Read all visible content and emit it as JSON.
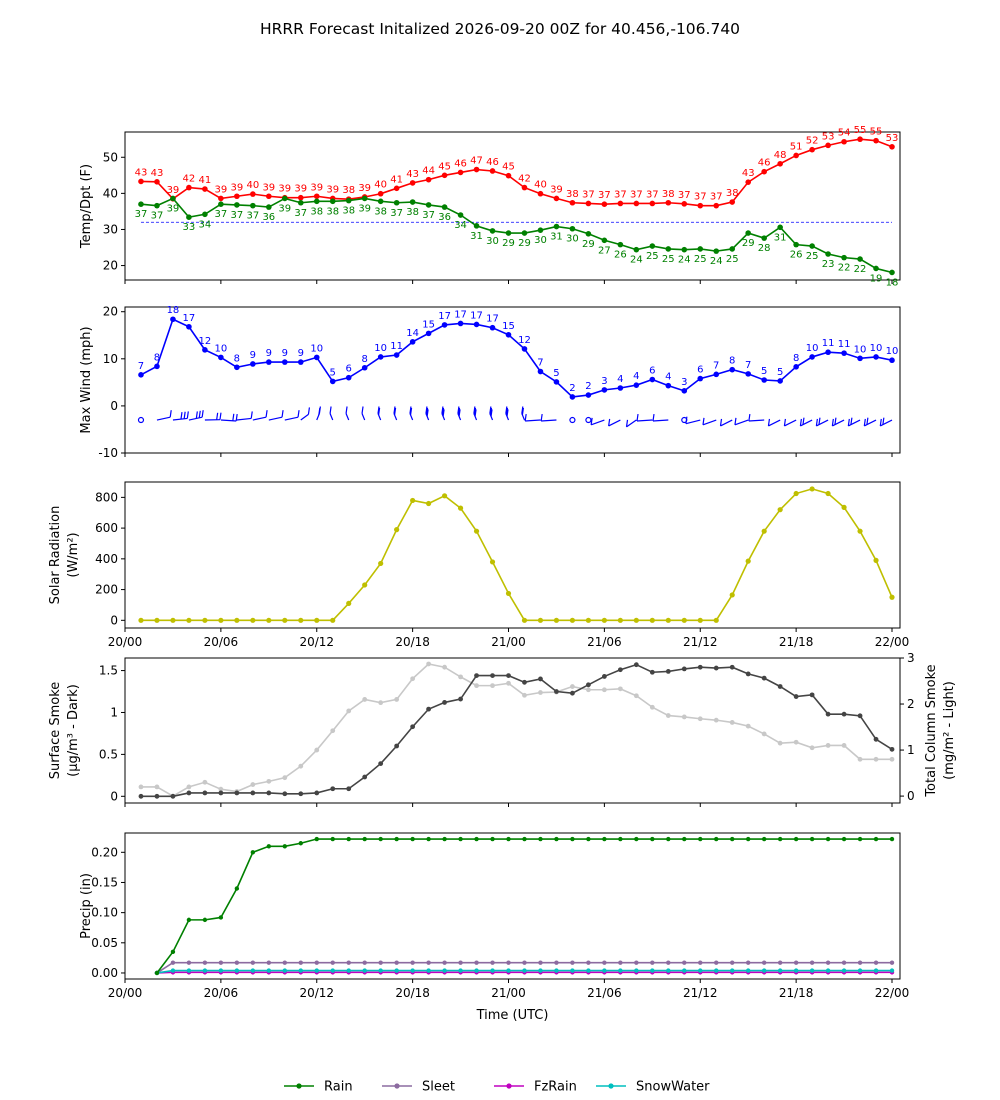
{
  "figure": {
    "title": "HRRR Forecast Initalized 2026-09-20 00Z for 40.456,-106.740"
  },
  "chart_data": [
    {
      "type": "line",
      "panel": "temperature",
      "ylabel": "Temp/Dpt (F)",
      "ylim": [
        16,
        57
      ],
      "yticks": [
        20,
        30,
        40,
        50
      ],
      "x_hours": [
        1,
        2,
        3,
        4,
        5,
        6,
        7,
        8,
        9,
        10,
        11,
        12,
        13,
        14,
        15,
        16,
        17,
        18,
        19,
        20,
        21,
        22,
        23,
        24,
        25,
        26,
        27,
        28,
        29,
        30,
        31,
        32,
        33,
        34,
        35,
        36,
        37,
        38,
        39,
        40,
        41,
        42,
        43,
        44,
        45,
        46,
        47,
        48
      ],
      "series": [
        {
          "key": "temp",
          "color": "#ff0000",
          "values": [
            43,
            43,
            39,
            42,
            41,
            39,
            39,
            40,
            39,
            39,
            39,
            39,
            39,
            38,
            39,
            40,
            41,
            43,
            44,
            45,
            46,
            47,
            46,
            45,
            42,
            40,
            39,
            38,
            37,
            37,
            37,
            37,
            37,
            38,
            37,
            37,
            37,
            38,
            43,
            46,
            48,
            51,
            52,
            53,
            54,
            55,
            55,
            53
          ],
          "plot": [
            43.3,
            43.2,
            38.5,
            41.6,
            41.2,
            38.6,
            39.2,
            39.8,
            39.2,
            38.8,
            38.8,
            39.2,
            38.6,
            38.4,
            39.0,
            39.9,
            41.4,
            42.9,
            43.8,
            45.0,
            45.8,
            46.6,
            46.2,
            44.9,
            41.6,
            39.9,
            38.6,
            37.4,
            37.2,
            37.0,
            37.2,
            37.2,
            37.2,
            37.4,
            37.1,
            36.6,
            36.6,
            37.6,
            43.1,
            46.0,
            48.2,
            50.5,
            52.1,
            53.3,
            54.3,
            55.0,
            54.6,
            52.9
          ]
        },
        {
          "key": "dewpoint",
          "color": "#008000",
          "values": [
            37,
            37,
            39,
            33,
            34,
            37,
            37,
            37,
            36,
            39,
            37,
            38,
            38,
            38,
            39,
            38,
            37,
            38,
            37,
            36,
            34,
            31,
            30,
            29,
            29,
            30,
            31,
            30,
            29,
            27,
            26,
            24,
            25,
            25,
            24,
            25,
            24,
            25,
            29,
            28,
            31,
            26,
            25,
            23,
            22,
            22,
            19,
            18
          ],
          "plot": [
            37.0,
            36.6,
            38.6,
            33.4,
            34.2,
            37.0,
            36.8,
            36.6,
            36.2,
            38.6,
            37.4,
            37.8,
            37.8,
            38.0,
            38.6,
            37.8,
            37.4,
            37.6,
            36.8,
            36.2,
            34.0,
            31.0,
            29.6,
            29.0,
            29.0,
            29.8,
            30.8,
            30.2,
            28.8,
            27.0,
            25.8,
            24.4,
            25.4,
            24.6,
            24.4,
            24.6,
            24.0,
            24.6,
            29.0,
            27.6,
            30.6,
            25.8,
            25.4,
            23.2,
            22.2,
            21.8,
            19.2,
            18.1
          ]
        }
      ],
      "reference_line": {
        "value": 32,
        "color": "#0000ff",
        "style": "dashed"
      }
    },
    {
      "type": "line",
      "panel": "wind",
      "ylabel": "Max Wind (mph)",
      "ylim": [
        -10,
        21
      ],
      "yticks": [
        -10,
        0,
        10,
        20
      ],
      "color": "#0000ff",
      "values": [
        7,
        8,
        18,
        17,
        12,
        10,
        8,
        9,
        9,
        9,
        9,
        10,
        5,
        6,
        8,
        10,
        11,
        14,
        15,
        17,
        17,
        17,
        17,
        15,
        12,
        7,
        5,
        2,
        2,
        3,
        4,
        4,
        6,
        4,
        3,
        6,
        7,
        8,
        7,
        5,
        5,
        8,
        10,
        11,
        11,
        10,
        10,
        10
      ],
      "plot": [
        6.6,
        8.4,
        18.4,
        16.8,
        11.9,
        10.3,
        8.2,
        8.9,
        9.3,
        9.3,
        9.3,
        10.3,
        5.2,
        6.0,
        8.1,
        10.4,
        10.8,
        13.6,
        15.4,
        17.2,
        17.5,
        17.3,
        16.6,
        15.1,
        12.1,
        7.3,
        5.1,
        1.9,
        2.3,
        3.4,
        3.8,
        4.4,
        5.6,
        4.3,
        3.2,
        5.8,
        6.7,
        7.7,
        6.8,
        5.5,
        5.3,
        8.3,
        10.4,
        11.4,
        11.2,
        10.1,
        10.4,
        9.7
      ],
      "wind_barbs_row": "direction barbs drawn at y = -3 for each hour"
    },
    {
      "type": "line",
      "panel": "solar",
      "ylabel": "Solar Radiation",
      "ylabel_unit": "(W/m²)",
      "ylim": [
        -50,
        900
      ],
      "yticks": [
        0,
        200,
        400,
        600,
        800
      ],
      "color": "#bfbf00",
      "values": [
        0,
        0,
        0,
        0,
        0,
        0,
        0,
        0,
        0,
        0,
        0,
        0,
        0,
        110,
        230,
        370,
        590,
        780,
        760,
        810,
        730,
        580,
        380,
        175,
        0,
        0,
        0,
        0,
        0,
        0,
        0,
        0,
        0,
        0,
        0,
        0,
        0,
        165,
        385,
        580,
        720,
        825,
        855,
        825,
        735,
        580,
        390,
        150
      ]
    },
    {
      "type": "line",
      "panel": "smoke",
      "ylabel": "Surface Smoke",
      "ylabel_unit": "(μg/m³ - Dark)",
      "ylim": [
        -0.08,
        1.65
      ],
      "yticks": [
        0.0,
        0.5,
        1.0,
        1.5
      ],
      "y2label": "Total Column Smoke",
      "y2label_unit": "(mg/m² - Light)",
      "y2lim": [
        -0.15,
        3.0
      ],
      "y2ticks": [
        0,
        1,
        2,
        3
      ],
      "series": [
        {
          "key": "surface_smoke",
          "axis": "left",
          "color": "#444444",
          "values": [
            0.0,
            0.0,
            0.0,
            0.04,
            0.04,
            0.04,
            0.04,
            0.04,
            0.04,
            0.03,
            0.03,
            0.04,
            0.09,
            0.09,
            0.23,
            0.39,
            0.6,
            0.83,
            1.04,
            1.12,
            1.16,
            1.44,
            1.44,
            1.44,
            1.36,
            1.4,
            1.25,
            1.23,
            1.33,
            1.43,
            1.51,
            1.57,
            1.48,
            1.49,
            1.52,
            1.54,
            1.53,
            1.54,
            1.46,
            1.41,
            1.31,
            1.19,
            1.21,
            0.98,
            0.98,
            0.96,
            0.68,
            0.56
          ]
        },
        {
          "key": "column_smoke",
          "axis": "right",
          "color": "#c8c8c8",
          "values": [
            0.2,
            0.2,
            0.0,
            0.2,
            0.3,
            0.15,
            0.1,
            0.25,
            0.32,
            0.4,
            0.65,
            1.0,
            1.42,
            1.85,
            2.1,
            2.03,
            2.1,
            2.55,
            2.87,
            2.8,
            2.59,
            2.4,
            2.4,
            2.45,
            2.19,
            2.25,
            2.26,
            2.38,
            2.31,
            2.31,
            2.33,
            2.18,
            1.93,
            1.75,
            1.72,
            1.68,
            1.65,
            1.6,
            1.52,
            1.35,
            1.15,
            1.17,
            1.05,
            1.1,
            1.1,
            0.8,
            0.8,
            0.8
          ]
        }
      ]
    },
    {
      "type": "line",
      "panel": "precip",
      "ylabel": "Precip (in)",
      "xlabel": "Time (UTC)",
      "ylim": [
        -0.01,
        0.232
      ],
      "yticks": [
        "0.00",
        "0.05",
        "0.10",
        "0.15",
        "0.20"
      ],
      "x_start_hour": 2,
      "series": [
        {
          "name": "Rain",
          "color": "#008000",
          "values": [
            0,
            0.035,
            0.088,
            0.088,
            0.092,
            0.14,
            0.2,
            0.21,
            0.21,
            0.215,
            0.222,
            0.222,
            0.222,
            0.222,
            0.222,
            0.222,
            0.222,
            0.222,
            0.222,
            0.222,
            0.222,
            0.222,
            0.222,
            0.222,
            0.222,
            0.222,
            0.222,
            0.222,
            0.222,
            0.222,
            0.222,
            0.222,
            0.222,
            0.222,
            0.222,
            0.222,
            0.222,
            0.222,
            0.222,
            0.222,
            0.222,
            0.222,
            0.222,
            0.222,
            0.222,
            0.222,
            0.222
          ]
        },
        {
          "name": "Sleet",
          "color": "#8c6ba0",
          "values": [
            0,
            0.017,
            0.017,
            0.017,
            0.017,
            0.017,
            0.017,
            0.017,
            0.017,
            0.017,
            0.017,
            0.017,
            0.017,
            0.017,
            0.017,
            0.017,
            0.017,
            0.017,
            0.017,
            0.017,
            0.017,
            0.017,
            0.017,
            0.017,
            0.017,
            0.017,
            0.017,
            0.017,
            0.017,
            0.017,
            0.017,
            0.017,
            0.017,
            0.017,
            0.017,
            0.017,
            0.017,
            0.017,
            0.017,
            0.017,
            0.017,
            0.017,
            0.017,
            0.017,
            0.017,
            0.017,
            0.017
          ]
        },
        {
          "name": "FzRain",
          "color": "#c000c0",
          "constant": 0.001
        },
        {
          "name": "SnowWater",
          "color": "#00bfbf",
          "constant": 0.004
        }
      ],
      "legend_position": "bottom-center"
    }
  ],
  "x_axis": {
    "tick_labels": [
      "20/00",
      "20/06",
      "20/12",
      "20/18",
      "21/00",
      "21/06",
      "21/12",
      "21/18",
      "22/00"
    ],
    "range_hours": [
      0,
      48.5
    ]
  }
}
